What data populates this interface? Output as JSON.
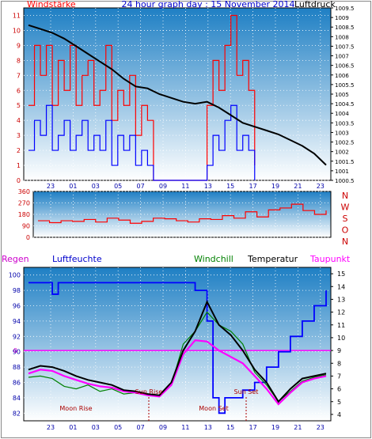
{
  "chart_data": [
    {
      "type": "line",
      "title": "24 hour graph day : 15 November 2014",
      "left_label": "Windstärke",
      "right_label": "Luftdruck",
      "x_ticks": [
        "23",
        "01",
        "03",
        "05",
        "07",
        "09",
        "11",
        "13",
        "15",
        "17",
        "19",
        "21",
        "23"
      ],
      "left_axis": {
        "ticks": [
          "0",
          "1",
          "2",
          "3",
          "4",
          "5",
          "6",
          "7",
          "8",
          "9",
          "10",
          "11"
        ],
        "range": [
          0,
          11.5
        ]
      },
      "right_axis": {
        "ticks": [
          "1000.5",
          "1001",
          "1001.5",
          "1002",
          "1002.5",
          "1003",
          "1003.5",
          "1004",
          "1004.5",
          "1005",
          "1005.5",
          "1006",
          "1006.5",
          "1007",
          "1007.5",
          "1008",
          "1008.5",
          "1009",
          "1009.5"
        ],
        "range": [
          1000.5,
          1009.5
        ]
      },
      "series": [
        {
          "name": "Luftdruck",
          "color": "#000000",
          "x": [
            0,
            1,
            2,
            3,
            4,
            5,
            6,
            7,
            8,
            9,
            10,
            11,
            12,
            13,
            14,
            15,
            16,
            17,
            18,
            19,
            20,
            21,
            22,
            23,
            24,
            24.5,
            25
          ],
          "values": [
            1008.6,
            1008.4,
            1008.2,
            1007.9,
            1007.5,
            1007.1,
            1006.7,
            1006.3,
            1005.8,
            1005.4,
            1005.3,
            1005.0,
            1004.8,
            1004.6,
            1004.5,
            1004.6,
            1004.3,
            1003.9,
            1003.5,
            1003.3,
            1003.1,
            1002.9,
            1002.6,
            1002.3,
            1001.9,
            1001.6,
            1001.3
          ]
        },
        {
          "name": "Windböen",
          "color": "#ff0000",
          "x": [
            0,
            0.5,
            1,
            1.5,
            2,
            2.5,
            3,
            3.5,
            4,
            4.5,
            5,
            5.5,
            6,
            6.5,
            7,
            7.5,
            8,
            8.5,
            9,
            9.5,
            10,
            10.5,
            11,
            11.5,
            12,
            12.5,
            13,
            13.5,
            14,
            14.5,
            15,
            15.5,
            16,
            16.5,
            17,
            17.5,
            18,
            18.5,
            19
          ],
          "values": [
            5,
            9,
            7,
            9,
            5,
            8,
            6,
            9,
            5,
            7,
            8,
            5,
            6,
            9,
            4,
            6,
            5,
            7,
            3,
            5,
            4,
            0,
            0,
            0,
            0,
            0,
            0,
            0,
            0,
            0,
            5,
            8,
            6,
            9,
            11,
            7,
            8,
            6,
            1
          ]
        },
        {
          "name": "Windgeschwindigkeit",
          "color": "#0000ff",
          "x": [
            0,
            0.5,
            1,
            1.5,
            2,
            2.5,
            3,
            3.5,
            4,
            4.5,
            5,
            5.5,
            6,
            6.5,
            7,
            7.5,
            8,
            8.5,
            9,
            9.5,
            10,
            10.5,
            11,
            11.5,
            12,
            12.5,
            13,
            13.5,
            14,
            14.5,
            15,
            15.5,
            16,
            16.5,
            17,
            17.5,
            18,
            18.5,
            19
          ],
          "values": [
            2,
            4,
            3,
            5,
            2,
            3,
            4,
            2,
            3,
            4,
            2,
            3,
            2,
            4,
            1,
            3,
            2,
            3,
            1,
            2,
            1,
            0,
            0,
            0,
            0,
            0,
            0,
            0,
            0,
            0,
            1,
            3,
            2,
            4,
            5,
            2,
            3,
            2,
            0
          ]
        }
      ]
    },
    {
      "type": "line",
      "left_ticks": [
        "0",
        "90",
        "180",
        "270",
        "360"
      ],
      "right_letters": [
        "N",
        "W",
        "S",
        "O",
        "N"
      ],
      "series": [
        {
          "name": "Windrichtung",
          "color": "#ff0000",
          "x": [
            0,
            1,
            2,
            3,
            4,
            5,
            6,
            7,
            8,
            9,
            10,
            11,
            12,
            13,
            14,
            15,
            16,
            17,
            18,
            19,
            20,
            21,
            22,
            23,
            24,
            25
          ],
          "values": [
            130,
            115,
            130,
            125,
            140,
            120,
            150,
            135,
            110,
            125,
            150,
            145,
            130,
            120,
            145,
            140,
            170,
            150,
            200,
            160,
            215,
            230,
            260,
            210,
            180,
            210
          ]
        }
      ]
    },
    {
      "type": "line",
      "legend": [
        "Regen",
        "Luftfeuchte",
        "Windchill",
        "Temperatur",
        "Taupunkt"
      ],
      "zero_label": "0",
      "left_axis": {
        "ticks": [
          "82",
          "84",
          "86",
          "88",
          "90",
          "92",
          "94",
          "96",
          "98",
          "100"
        ],
        "range": [
          81,
          101
        ]
      },
      "right_axis": {
        "ticks": [
          "4",
          "5",
          "6",
          "7",
          "8",
          "9",
          "10",
          "11",
          "12",
          "13",
          "14",
          "15"
        ],
        "range": [
          3.5,
          15.5
        ]
      },
      "annotations": [
        "Moon Rise",
        "Sun Rise",
        "Moon Set",
        "Sun Set"
      ],
      "x_ticks": [
        "23",
        "01",
        "03",
        "05",
        "07",
        "09",
        "11",
        "13",
        "15",
        "17",
        "19",
        "21",
        "23"
      ],
      "series": [
        {
          "name": "Luftfeuchte",
          "color": "#0000ff",
          "x": [
            0,
            1,
            2,
            2.5,
            3,
            4,
            6,
            8,
            10,
            12,
            13,
            14,
            15,
            15.5,
            16,
            16.5,
            17,
            18,
            19,
            20,
            21,
            22,
            23,
            24,
            25
          ],
          "values": [
            99,
            99,
            97.5,
            99,
            99,
            99,
            99,
            99,
            99,
            99,
            99,
            98,
            94,
            84,
            82,
            84,
            84,
            85,
            86,
            88,
            90,
            92,
            94,
            96,
            98
          ]
        },
        {
          "name": "Temperatur",
          "color": "#000000",
          "x": [
            0,
            1,
            2,
            3,
            4,
            5,
            6,
            7,
            8,
            9,
            10,
            11,
            12,
            13,
            14,
            15,
            16,
            17,
            18,
            19,
            20,
            21,
            22,
            23,
            24,
            25
          ],
          "values": [
            7.5,
            7.8,
            7.7,
            7.4,
            7.0,
            6.7,
            6.5,
            6.3,
            5.9,
            5.8,
            5.6,
            5.5,
            6.5,
            9.0,
            10.5,
            12.8,
            11.0,
            10.2,
            9.0,
            7.5,
            6.5,
            5.0,
            6.0,
            6.8,
            7.0,
            7.2
          ]
        },
        {
          "name": "Windchill",
          "color": "#008000",
          "x": [
            0,
            1,
            2,
            3,
            4,
            5,
            6,
            7,
            8,
            9,
            10,
            11,
            12,
            13,
            14,
            15,
            16,
            17,
            18,
            19,
            20,
            21,
            22,
            23,
            24,
            25
          ],
          "values": [
            6.9,
            7.0,
            6.8,
            6.2,
            6.0,
            6.3,
            5.8,
            6.0,
            5.6,
            5.7,
            5.5,
            5.5,
            6.3,
            9.5,
            10.5,
            12.0,
            11.0,
            10.5,
            9.5,
            7.3,
            6.3,
            5.0,
            5.8,
            6.6,
            6.9,
            7.1
          ]
        },
        {
          "name": "Taupunkt",
          "color": "#ff00ff",
          "x": [
            0,
            1,
            2,
            3,
            4,
            5,
            6,
            7,
            8,
            9,
            10,
            11,
            12,
            13,
            14,
            15,
            16,
            17,
            18,
            19,
            20,
            21,
            22,
            23,
            24,
            25
          ],
          "values": [
            7.2,
            7.5,
            7.4,
            7.0,
            6.7,
            6.4,
            6.2,
            6.1,
            5.8,
            5.7,
            5.5,
            5.4,
            6.3,
            8.7,
            9.8,
            9.7,
            9.0,
            8.5,
            8.0,
            7.0,
            6.0,
            4.8,
            5.7,
            6.5,
            6.8,
            7.0
          ]
        }
      ]
    }
  ]
}
